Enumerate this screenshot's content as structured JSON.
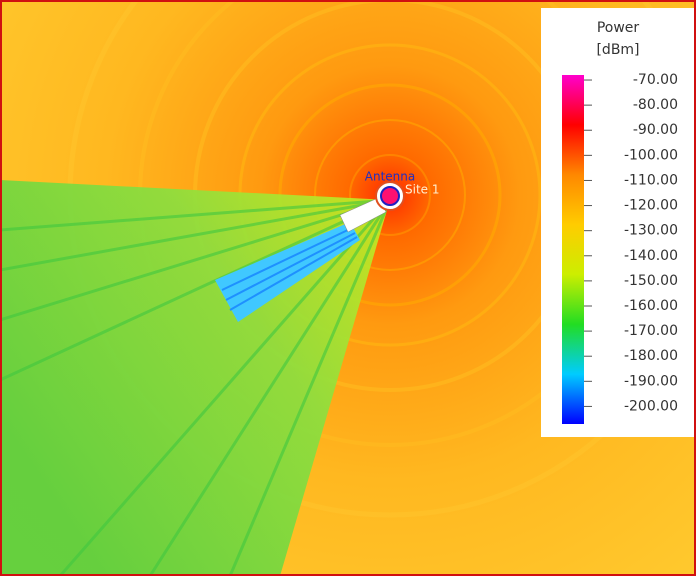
{
  "colorbar": {
    "title": "Power",
    "unit": "[dBm]",
    "limits": [
      -207,
      -68
    ],
    "colors": [
      "#0000ff",
      "#00ccff",
      "#22dd22",
      "#ccee00",
      "#ffcc00",
      "#ff8800",
      "#ff0000",
      "#ff00cc"
    ],
    "ticks": [
      {
        "value": -70,
        "label": "-70.00"
      },
      {
        "value": -80,
        "label": "-80.00"
      },
      {
        "value": -90,
        "label": "-90.00"
      },
      {
        "value": -100,
        "label": "-100.00"
      },
      {
        "value": -110,
        "label": "-110.00"
      },
      {
        "value": -120,
        "label": "-120.00"
      },
      {
        "value": -130,
        "label": "-130.00"
      },
      {
        "value": -140,
        "label": "-140.00"
      },
      {
        "value": -150,
        "label": "-150.00"
      },
      {
        "value": -160,
        "label": "-160.00"
      },
      {
        "value": -170,
        "label": "-170.00"
      },
      {
        "value": -180,
        "label": "-180.00"
      },
      {
        "value": -190,
        "label": "-190.00"
      },
      {
        "value": -200,
        "label": "-200.00"
      }
    ]
  },
  "map": {
    "antenna_label": "Antenna",
    "site_label": "Site 1"
  }
}
